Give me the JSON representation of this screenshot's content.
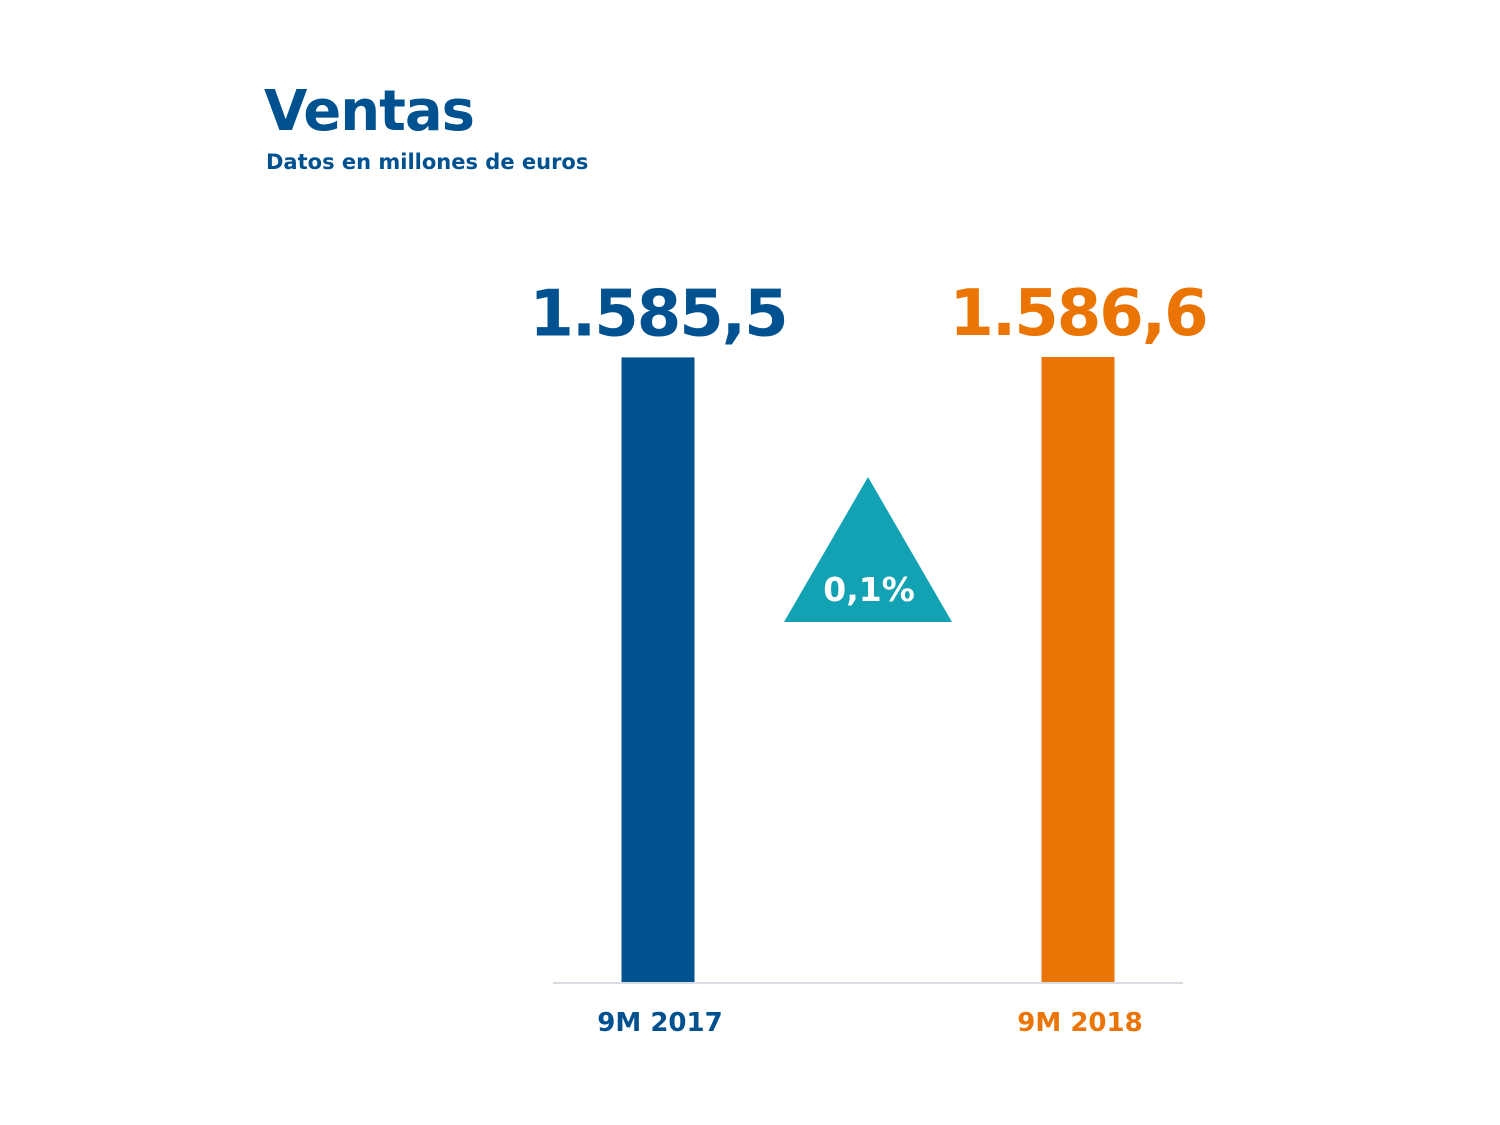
{
  "chart_data": {
    "type": "bar",
    "title": "Ventas",
    "subtitle": "Datos en millones de euros",
    "categories": [
      "9M 2017",
      "9M 2018"
    ],
    "values": [
      1585.5,
      1586.6
    ],
    "value_labels": [
      "1.585,5",
      "1.586,6"
    ],
    "change_label": "0,1%",
    "change_direction": "up",
    "xlabel": "",
    "ylabel": "",
    "grid": false,
    "legend": "none"
  },
  "colors": {
    "title": "#00518f",
    "bars": [
      "#00518f",
      "#ea7404"
    ],
    "triangle": "#13a2b4",
    "axis": "#d8dde3"
  }
}
